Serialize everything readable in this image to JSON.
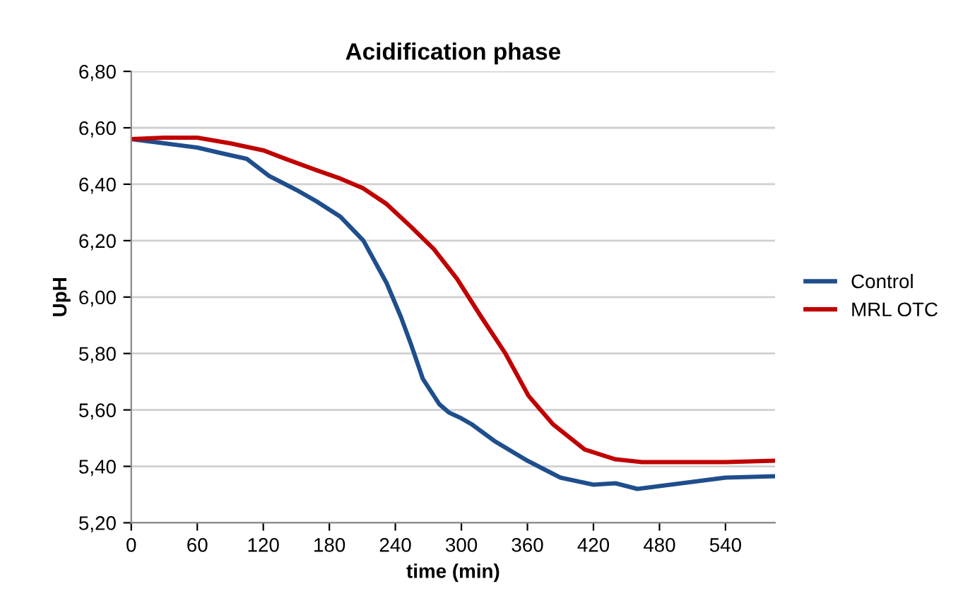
{
  "chart_data": {
    "type": "line",
    "title": "Acidification phase",
    "xlabel": "time (min)",
    "ylabel": "UpH",
    "xlim": [
      0,
      585
    ],
    "xticks": [
      0,
      60,
      120,
      180,
      240,
      300,
      360,
      420,
      480,
      540
    ],
    "ylim": [
      5.2,
      6.8
    ],
    "yticks": [
      {
        "value": 5.2,
        "label": "5,20"
      },
      {
        "value": 5.4,
        "label": "5,40"
      },
      {
        "value": 5.6,
        "label": "5,60"
      },
      {
        "value": 5.8,
        "label": "5,80"
      },
      {
        "value": 6.0,
        "label": "6,00"
      },
      {
        "value": 6.2,
        "label": "6,20"
      },
      {
        "value": 6.4,
        "label": "6,40"
      },
      {
        "value": 6.6,
        "label": "6,60"
      },
      {
        "value": 6.8,
        "label": "6,80"
      }
    ],
    "grid": "y",
    "legend": "right",
    "marker": "none",
    "line_style": "solid",
    "series": [
      {
        "name": "Control",
        "color": "#1f4e8c",
        "x": [
          0,
          30,
          60,
          82,
          105,
          125,
          150,
          168,
          190,
          211,
          232,
          245,
          254,
          265,
          280,
          289,
          300,
          309,
          330,
          360,
          390,
          420,
          440,
          460,
          480,
          510,
          540,
          585
        ],
        "values": [
          6.56,
          6.545,
          6.53,
          6.51,
          6.49,
          6.43,
          6.38,
          6.34,
          6.285,
          6.2,
          6.05,
          5.93,
          5.835,
          5.71,
          5.62,
          5.59,
          5.57,
          5.55,
          5.49,
          5.42,
          5.36,
          5.335,
          5.34,
          5.32,
          5.33,
          5.345,
          5.36,
          5.365
        ]
      },
      {
        "name": "MRL OTC",
        "color": "#c00000",
        "x": [
          0,
          30,
          60,
          90,
          120,
          140,
          168,
          190,
          211,
          232,
          254,
          275,
          296,
          318,
          340,
          361,
          383,
          412,
          440,
          464,
          500,
          540,
          585
        ],
        "values": [
          6.56,
          6.565,
          6.565,
          6.545,
          6.52,
          6.49,
          6.45,
          6.42,
          6.385,
          6.33,
          6.25,
          6.17,
          6.065,
          5.93,
          5.8,
          5.65,
          5.55,
          5.46,
          5.425,
          5.415,
          5.415,
          5.415,
          5.42
        ]
      }
    ]
  }
}
